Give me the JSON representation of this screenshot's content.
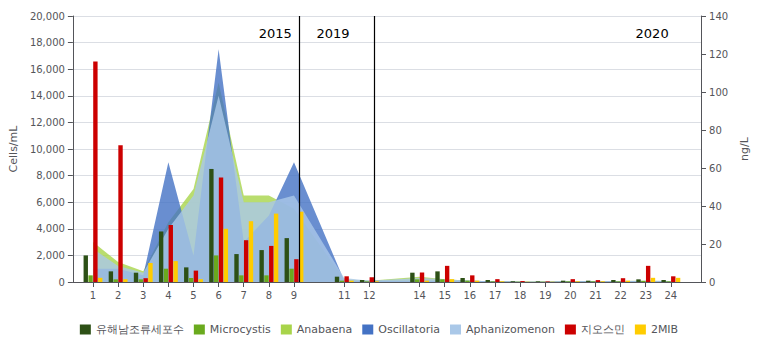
{
  "chart_data": {
    "type": "bar",
    "x": [
      1,
      2,
      3,
      4,
      5,
      6,
      7,
      8,
      9,
      11,
      12,
      14,
      15,
      16,
      17,
      18,
      19,
      20,
      21,
      22,
      23,
      24
    ],
    "xlim": [
      0.2,
      25.2
    ],
    "xticks": [
      1,
      2,
      3,
      4,
      5,
      6,
      7,
      8,
      9,
      11,
      12,
      14,
      15,
      16,
      17,
      18,
      19,
      20,
      21,
      22,
      23,
      24
    ],
    "ylim": [
      0,
      20000
    ],
    "yticks": [
      0,
      {
        "value": 2000,
        "label": "2,000"
      },
      {
        "value": 4000,
        "label": "4,000"
      },
      {
        "value": 6000,
        "label": "6,000"
      },
      {
        "value": 8000,
        "label": "8,000"
      },
      {
        "value": 10000,
        "label": "10,000"
      },
      {
        "value": 12000,
        "label": "12,000"
      },
      {
        "value": 14000,
        "label": "14,000"
      },
      {
        "value": 16000,
        "label": "16,000"
      },
      {
        "value": 18000,
        "label": "18,000"
      },
      {
        "value": 20000,
        "label": "20,000"
      }
    ],
    "y2lim": [
      0,
      140
    ],
    "y2ticks": [
      0,
      20,
      40,
      60,
      80,
      100,
      120,
      140
    ],
    "ylabel": "Cells/mL",
    "y2label": "ng/L",
    "grid": true,
    "legend": "bottom",
    "vlines": [
      9.5,
      12.5
    ],
    "annotations": [
      {
        "text": "2015",
        "x": 9.2,
        "y": 19200
      },
      {
        "text": "2019",
        "x": 11.5,
        "y": 19200
      },
      {
        "text": "2020",
        "x": 24.2,
        "y": 19200
      }
    ],
    "series": [
      {
        "name": "유해남조류세포수",
        "type": "bar",
        "color": "#2d5016",
        "values": [
          2000,
          800,
          700,
          3800,
          1100,
          8500,
          2100,
          2400,
          3300,
          400,
          150,
          700,
          800,
          300,
          150,
          50,
          50,
          100,
          100,
          150,
          200,
          150
        ]
      },
      {
        "name": "Microcystis",
        "type": "bar",
        "color": "#6aaa1e",
        "values": [
          500,
          200,
          200,
          1000,
          300,
          2000,
          500,
          500,
          1000,
          100,
          50,
          200,
          200,
          100,
          50,
          20,
          20,
          50,
          50,
          50,
          80,
          50
        ]
      },
      {
        "name": "Anabaena",
        "type": "area",
        "color": "#a8d44a",
        "values": [
          3000,
          1500,
          800,
          4500,
          7000,
          15000,
          6500,
          6500,
          5500,
          200,
          100,
          400,
          200,
          100,
          50,
          30,
          30,
          50,
          50,
          80,
          100,
          80
        ]
      },
      {
        "name": "Oscillatoria",
        "type": "area",
        "color": "#4472c4",
        "values": [
          1000,
          1000,
          500,
          9000,
          2000,
          17500,
          3000,
          5000,
          9000,
          100,
          100,
          100,
          100,
          100,
          50,
          20,
          20,
          50,
          50,
          50,
          80,
          50
        ]
      },
      {
        "name": "Aphanizomenon",
        "type": "area",
        "color": "#aac8e8",
        "values": [
          2500,
          1200,
          700,
          4000,
          6500,
          14000,
          6000,
          6000,
          6500,
          300,
          100,
          300,
          200,
          100,
          50,
          20,
          20,
          50,
          50,
          80,
          100,
          80
        ]
      },
      {
        "name": "지오스민",
        "type": "bar",
        "axis": "y2",
        "color": "#cc0000",
        "values": [
          116,
          72,
          2,
          30,
          6,
          55,
          22,
          19,
          12,
          3,
          2.5,
          5,
          8.5,
          3.5,
          1.5,
          0.5,
          0.3,
          1.5,
          1,
          2,
          8.5,
          3
        ]
      },
      {
        "name": "2MIB",
        "type": "bar",
        "axis": "y2",
        "color": "#ffcc00",
        "values": [
          2.2,
          1.5,
          10,
          11,
          1.5,
          28,
          32,
          36,
          37,
          0.7,
          0.4,
          0.7,
          1.5,
          0.7,
          0.4,
          0.15,
          0.15,
          0.4,
          0.4,
          0.7,
          2.2,
          2.2
        ]
      }
    ]
  }
}
